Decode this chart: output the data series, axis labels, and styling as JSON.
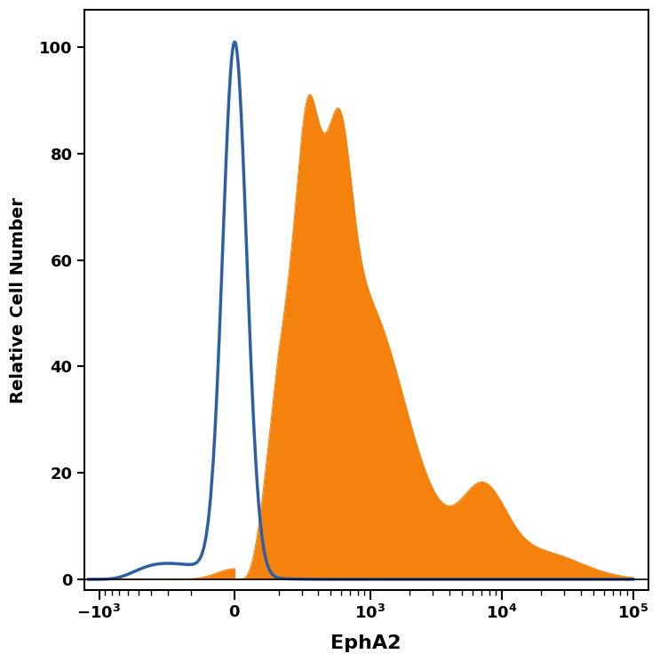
{
  "xlabel": "EphA2",
  "ylabel": "Relative Cell Number",
  "xlabel_fontsize": 16,
  "ylabel_fontsize": 14,
  "xlabel_fontweight": "bold",
  "ylabel_fontweight": "bold",
  "ylim": [
    -2,
    107
  ],
  "yticks": [
    0,
    20,
    40,
    60,
    80,
    100
  ],
  "blue_color": "#2E5FA3",
  "orange_color": "#F5820D",
  "bg_color": "#ffffff",
  "linewidth": 2.5,
  "figsize": [
    7.43,
    7.45
  ],
  "dpi": 100,
  "symlog_linthresh": 200,
  "symlog_linscale": 0.3
}
